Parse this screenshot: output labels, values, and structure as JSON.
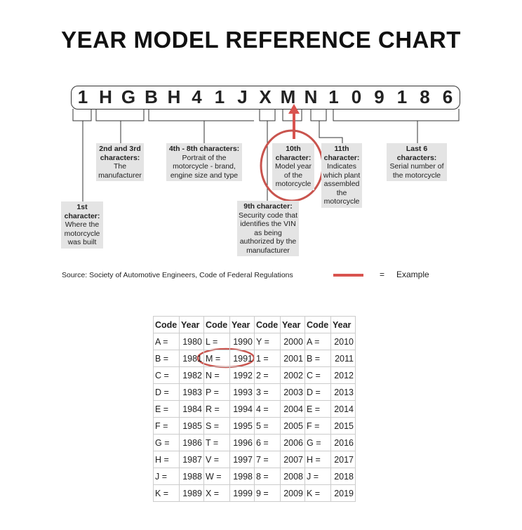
{
  "title": "YEAR MODEL REFERENCE CHART",
  "vin": [
    "1",
    "H",
    "G",
    "B",
    "H",
    "4",
    "1",
    "J",
    "X",
    "M",
    "N",
    "1",
    "0",
    "9",
    "1",
    "8",
    "6"
  ],
  "labels": {
    "first": {
      "heading": "1st character:",
      "text": "Where the motorcycle was built"
    },
    "second_third": {
      "heading": "2nd and 3rd characters:",
      "text": "The manufacturer"
    },
    "fourth_eighth": {
      "heading": "4th - 8th characters:",
      "text": "Portrait of the motorcycle - brand, engine size and type"
    },
    "ninth": {
      "heading": "9th character:",
      "text": "Security code that identifies the VIN as being authorized by the manufacturer"
    },
    "tenth": {
      "heading": "10th character:",
      "text": "Model year of the motorcycle"
    },
    "eleventh": {
      "heading": "11th character:",
      "text": "Indicates which plant assembled the motorcycle"
    },
    "last_six": {
      "heading": "Last 6 characters:",
      "text": "Serial number of the motorcycle"
    }
  },
  "source": "Source:  Society of Automotive Engineers, Code of Federal Regulations",
  "legend": {
    "equals": "=",
    "label": "Example",
    "color": "#d9534f"
  },
  "table": {
    "headers": [
      "Code",
      "Year",
      "Code",
      "Year",
      "Code",
      "Year",
      "Code",
      "Year"
    ],
    "rows": [
      [
        "A =",
        "1980",
        "L =",
        "1990",
        "Y =",
        "2000",
        "A =",
        "2010"
      ],
      [
        "B =",
        "1981",
        "M =",
        "1991",
        "1 =",
        "2001",
        "B =",
        "2011"
      ],
      [
        "C =",
        "1982",
        "N =",
        "1992",
        "2 =",
        "2002",
        "C =",
        "2012"
      ],
      [
        "D =",
        "1983",
        "P =",
        "1993",
        "3 =",
        "2003",
        "D =",
        "2013"
      ],
      [
        "E =",
        "1984",
        "R =",
        "1994",
        "4 =",
        "2004",
        "E =",
        "2014"
      ],
      [
        "F =",
        "1985",
        "S =",
        "1995",
        "5 =",
        "2005",
        "F =",
        "2015"
      ],
      [
        "G =",
        "1986",
        "T =",
        "1996",
        "6 =",
        "2006",
        "G =",
        "2016"
      ],
      [
        "H =",
        "1987",
        "V =",
        "1997",
        "7 =",
        "2007",
        "H =",
        "2017"
      ],
      [
        "J =",
        "1988",
        "W =",
        "1998",
        "8 =",
        "2008",
        "J =",
        "2018"
      ],
      [
        "K =",
        "1989",
        "X =",
        "1999",
        "9 =",
        "2009",
        "K =",
        "2019"
      ]
    ]
  }
}
